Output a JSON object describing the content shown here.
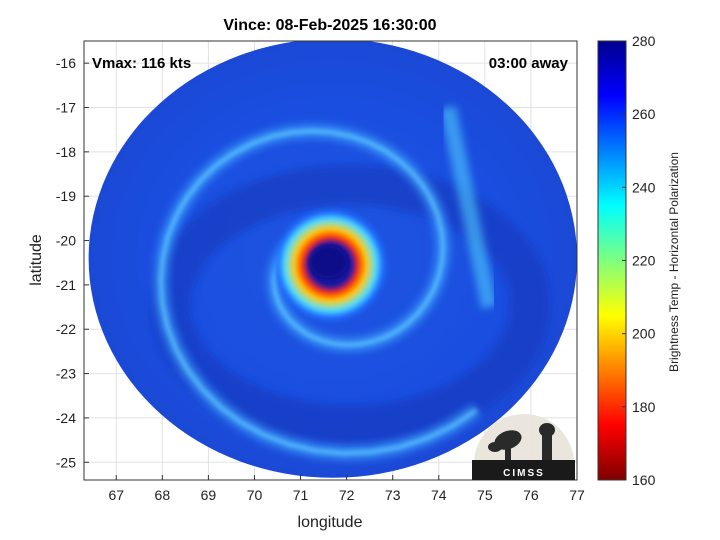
{
  "chart_data": {
    "type": "heatmap",
    "title": "Vince: 08-Feb-2025 16:30:00",
    "xlabel": "longitude",
    "ylabel": "latitude",
    "xlim": [
      66.3,
      77.0
    ],
    "ylim": [
      -25.4,
      -15.5
    ],
    "xticks": [
      "67",
      "68",
      "69",
      "70",
      "71",
      "72",
      "73",
      "74",
      "75",
      "76",
      "77"
    ],
    "yticks": [
      "-16",
      "-17",
      "-18",
      "-19",
      "-20",
      "-21",
      "-22",
      "-23",
      "-24",
      "-25"
    ],
    "grid": true,
    "annotations": {
      "vmax": "Vmax: 116 kts",
      "time_away": "03:00 away"
    },
    "colorbar": {
      "label": "Brightness Temp - Horizontal Polarization",
      "range": [
        160,
        280
      ],
      "ticks": [
        "280",
        "260",
        "240",
        "220",
        "200",
        "180",
        "160"
      ],
      "colormap": [
        "#7f0000",
        "#ff0000",
        "#ffff00",
        "#00ffff",
        "#0000ff",
        "#00008f"
      ]
    },
    "swath": {
      "center": [
        71.7,
        -20.4
      ],
      "radius_lon": 5.3,
      "radius_lat": 4.95,
      "background_value": 262
    },
    "storm": {
      "eye_center": [
        71.65,
        -20.55
      ],
      "eye_value": 265,
      "eyewall_value": 190,
      "eyewall_radius_deg": 0.6
    },
    "logo": "CIMSS"
  }
}
